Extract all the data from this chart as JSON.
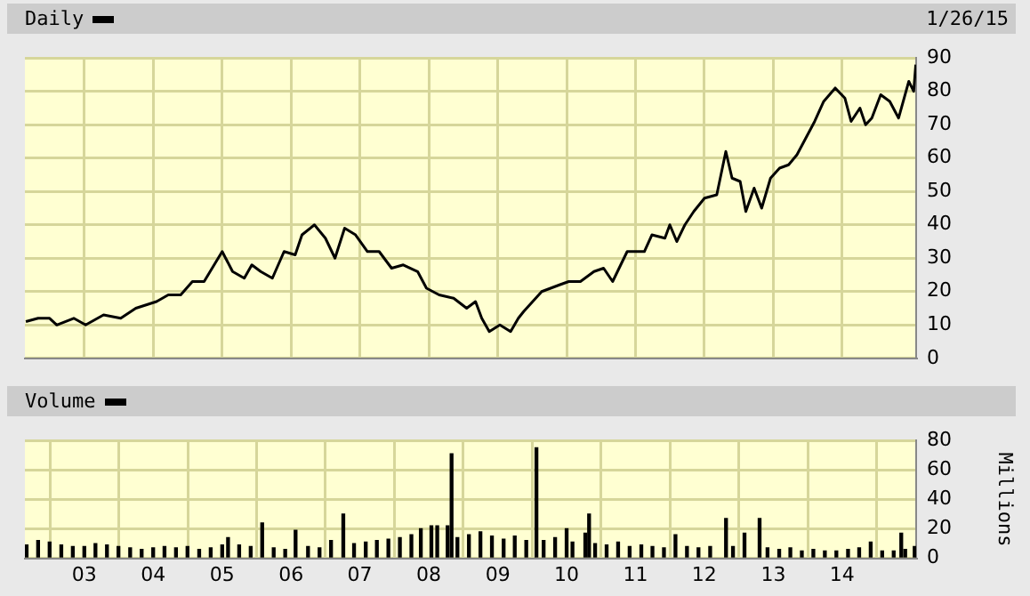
{
  "chart_data": [
    {
      "type": "line",
      "annotations": [
        "1/26/15"
      ],
      "legend": "top left",
      "grid": true,
      "marker": "none",
      "line_style": "solid",
      "tick_labels": "y",
      "xlim": [
        "2002-02-20",
        "2015-01-28"
      ],
      "xticks": [
        {
          "value": "2003-01-01",
          "label": null
        },
        {
          "value": "2004-01-01",
          "label": null
        },
        {
          "value": "2005-01-01",
          "label": null
        },
        {
          "value": "2006-01-01",
          "label": null
        },
        {
          "value": "2007-01-01",
          "label": null
        },
        {
          "value": "2008-01-01",
          "label": null
        },
        {
          "value": "2009-01-01",
          "label": null
        },
        {
          "value": "2010-01-01",
          "label": null
        },
        {
          "value": "2011-01-01",
          "label": null
        },
        {
          "value": "2012-01-01",
          "label": null
        },
        {
          "value": "2013-01-01",
          "label": null
        },
        {
          "value": "2014-01-01",
          "label": null
        }
      ],
      "ylim": [
        0,
        90
      ],
      "yticks": [
        0,
        10,
        20,
        30,
        40,
        50,
        60,
        70,
        80,
        90
      ],
      "x": [
        "2002-02-25",
        "2002-05-01",
        "2002-07-01",
        "2002-08-08",
        "2002-11-06",
        "2003-01-08",
        "2003-04-13",
        "2003-07-13",
        "2003-10-01",
        "2004-01-19",
        "2004-03-21",
        "2004-05-26",
        "2004-07-27",
        "2004-09-27",
        "2005-01-01",
        "2005-02-25",
        "2005-04-28",
        "2005-06-07",
        "2005-07-24",
        "2005-09-24",
        "2005-11-25",
        "2006-01-23",
        "2006-02-28",
        "2006-05-05",
        "2006-07-02",
        "2006-08-22",
        "2006-10-12",
        "2006-12-09",
        "2007-02-10",
        "2007-04-13",
        "2007-06-18",
        "2007-08-19",
        "2007-11-03",
        "2007-12-20",
        "2008-02-25",
        "2008-05-12",
        "2008-07-20",
        "2008-09-05",
        "2008-10-08",
        "2008-11-17",
        "2009-01-12",
        "2009-03-10",
        "2009-04-20",
        "2009-05-18",
        "2009-08-22",
        "2009-11-24",
        "2010-01-12",
        "2010-03-15",
        "2010-05-26",
        "2010-07-16",
        "2010-09-02",
        "2010-11-18",
        "2011-02-17",
        "2011-03-29",
        "2011-06-06",
        "2011-07-02",
        "2011-08-08",
        "2011-09-20",
        "2011-11-06",
        "2012-01-02",
        "2012-03-07",
        "2012-04-24",
        "2012-05-27",
        "2012-07-09",
        "2012-08-08",
        "2012-09-21",
        "2012-10-31",
        "2012-12-17",
        "2013-02-03",
        "2013-03-23",
        "2013-05-06",
        "2013-06-22",
        "2013-08-08",
        "2013-09-25",
        "2013-11-25",
        "2014-01-15",
        "2014-02-17",
        "2014-04-05",
        "2014-05-05",
        "2014-06-07",
        "2014-07-24",
        "2014-09-10",
        "2014-10-27",
        "2014-12-20",
        "2015-01-15",
        "2015-01-26"
      ],
      "series": [
        {
          "name": "Daily",
          "color": "#000000",
          "values": [
            11,
            12,
            12,
            10,
            12,
            10,
            13,
            12,
            15,
            17,
            19,
            19,
            23,
            23,
            32,
            26,
            24,
            28,
            26,
            24,
            32,
            31,
            37,
            40,
            36,
            30,
            39,
            37,
            32,
            32,
            27,
            28,
            26,
            21,
            19,
            18,
            15,
            17,
            12,
            8,
            10,
            8,
            12,
            14,
            20,
            22,
            23,
            23,
            26,
            27,
            23,
            32,
            32,
            37,
            36,
            40,
            35,
            40,
            44,
            48,
            49,
            62,
            54,
            53,
            44,
            51,
            45,
            54,
            57,
            58,
            61,
            66,
            71,
            77,
            81,
            78,
            71,
            75,
            70,
            72,
            79,
            77,
            72,
            83,
            80,
            88
          ]
        }
      ]
    },
    {
      "type": "bar",
      "grid": true,
      "legend": "top left",
      "ylabel": "Millions",
      "xlim": [
        "2002-02-20",
        "2015-01-28"
      ],
      "xticks": [
        {
          "value": "2003-01-01",
          "label": "03"
        },
        {
          "value": "2004-01-01",
          "label": "04"
        },
        {
          "value": "2005-01-01",
          "label": "05"
        },
        {
          "value": "2006-01-01",
          "label": "06"
        },
        {
          "value": "2007-01-01",
          "label": "07"
        },
        {
          "value": "2008-01-01",
          "label": "08"
        },
        {
          "value": "2009-01-01",
          "label": "09"
        },
        {
          "value": "2010-01-01",
          "label": "10"
        },
        {
          "value": "2011-01-01",
          "label": "11"
        },
        {
          "value": "2012-01-01",
          "label": "12"
        },
        {
          "value": "2013-01-01",
          "label": "13"
        },
        {
          "value": "2014-01-01",
          "label": "14"
        }
      ],
      "ylim": [
        0,
        80
      ],
      "yticks": [
        0,
        20,
        40,
        60,
        80
      ],
      "x": [
        "2002-03",
        "2002-05",
        "2002-07",
        "2002-09",
        "2002-11",
        "2003-01",
        "2003-03",
        "2003-05",
        "2003-07",
        "2003-09",
        "2003-11",
        "2004-01",
        "2004-03",
        "2004-05",
        "2004-07",
        "2004-09",
        "2004-11",
        "2005-01",
        "2005-02",
        "2005-04",
        "2005-06",
        "2005-08-01",
        "2005-10",
        "2005-12",
        "2006-01-25",
        "2006-04",
        "2006-06",
        "2006-08",
        "2006-10-05",
        "2006-12",
        "2007-02",
        "2007-04",
        "2007-06",
        "2007-08",
        "2007-10",
        "2007-11-20",
        "2008-01-15",
        "2008-02-15",
        "2008-04-10",
        "2008-05-01",
        "2008-06",
        "2008-08",
        "2008-10",
        "2008-12",
        "2009-02",
        "2009-04",
        "2009-06",
        "2009-07-25",
        "2009-09",
        "2009-11",
        "2010-01-01",
        "2010-02",
        "2010-04-10",
        "2010-04-30",
        "2010-06",
        "2010-08",
        "2010-10",
        "2010-12",
        "2011-02",
        "2011-04",
        "2011-06",
        "2011-08-01",
        "2011-10",
        "2011-12",
        "2012-02",
        "2012-04-25",
        "2012-06",
        "2012-08-01",
        "2012-10-20",
        "2012-12",
        "2013-02",
        "2013-04",
        "2013-06",
        "2013-08",
        "2013-10",
        "2013-12",
        "2014-02",
        "2014-04",
        "2014-06",
        "2014-08",
        "2014-10",
        "2014-11-10",
        "2014-12",
        "2015-01-20"
      ],
      "series": [
        {
          "name": "Volume",
          "color": "#000000",
          "values": [
            9,
            12,
            11,
            9,
            8,
            8,
            10,
            9,
            8,
            7,
            6,
            7,
            8,
            7,
            8,
            6,
            7,
            9,
            14,
            9,
            8,
            24,
            7,
            6,
            19,
            8,
            7,
            12,
            30,
            10,
            11,
            12,
            13,
            14,
            16,
            20,
            22,
            22,
            22,
            71,
            14,
            16,
            18,
            15,
            13,
            15,
            12,
            75,
            12,
            14,
            20,
            11,
            17,
            30,
            10,
            9,
            11,
            8,
            9,
            8,
            7,
            16,
            8,
            7,
            8,
            27,
            8,
            17,
            27,
            7,
            6,
            7,
            5,
            6,
            5,
            5,
            6,
            7,
            11,
            5,
            5,
            17,
            6,
            8
          ]
        }
      ]
    }
  ]
}
